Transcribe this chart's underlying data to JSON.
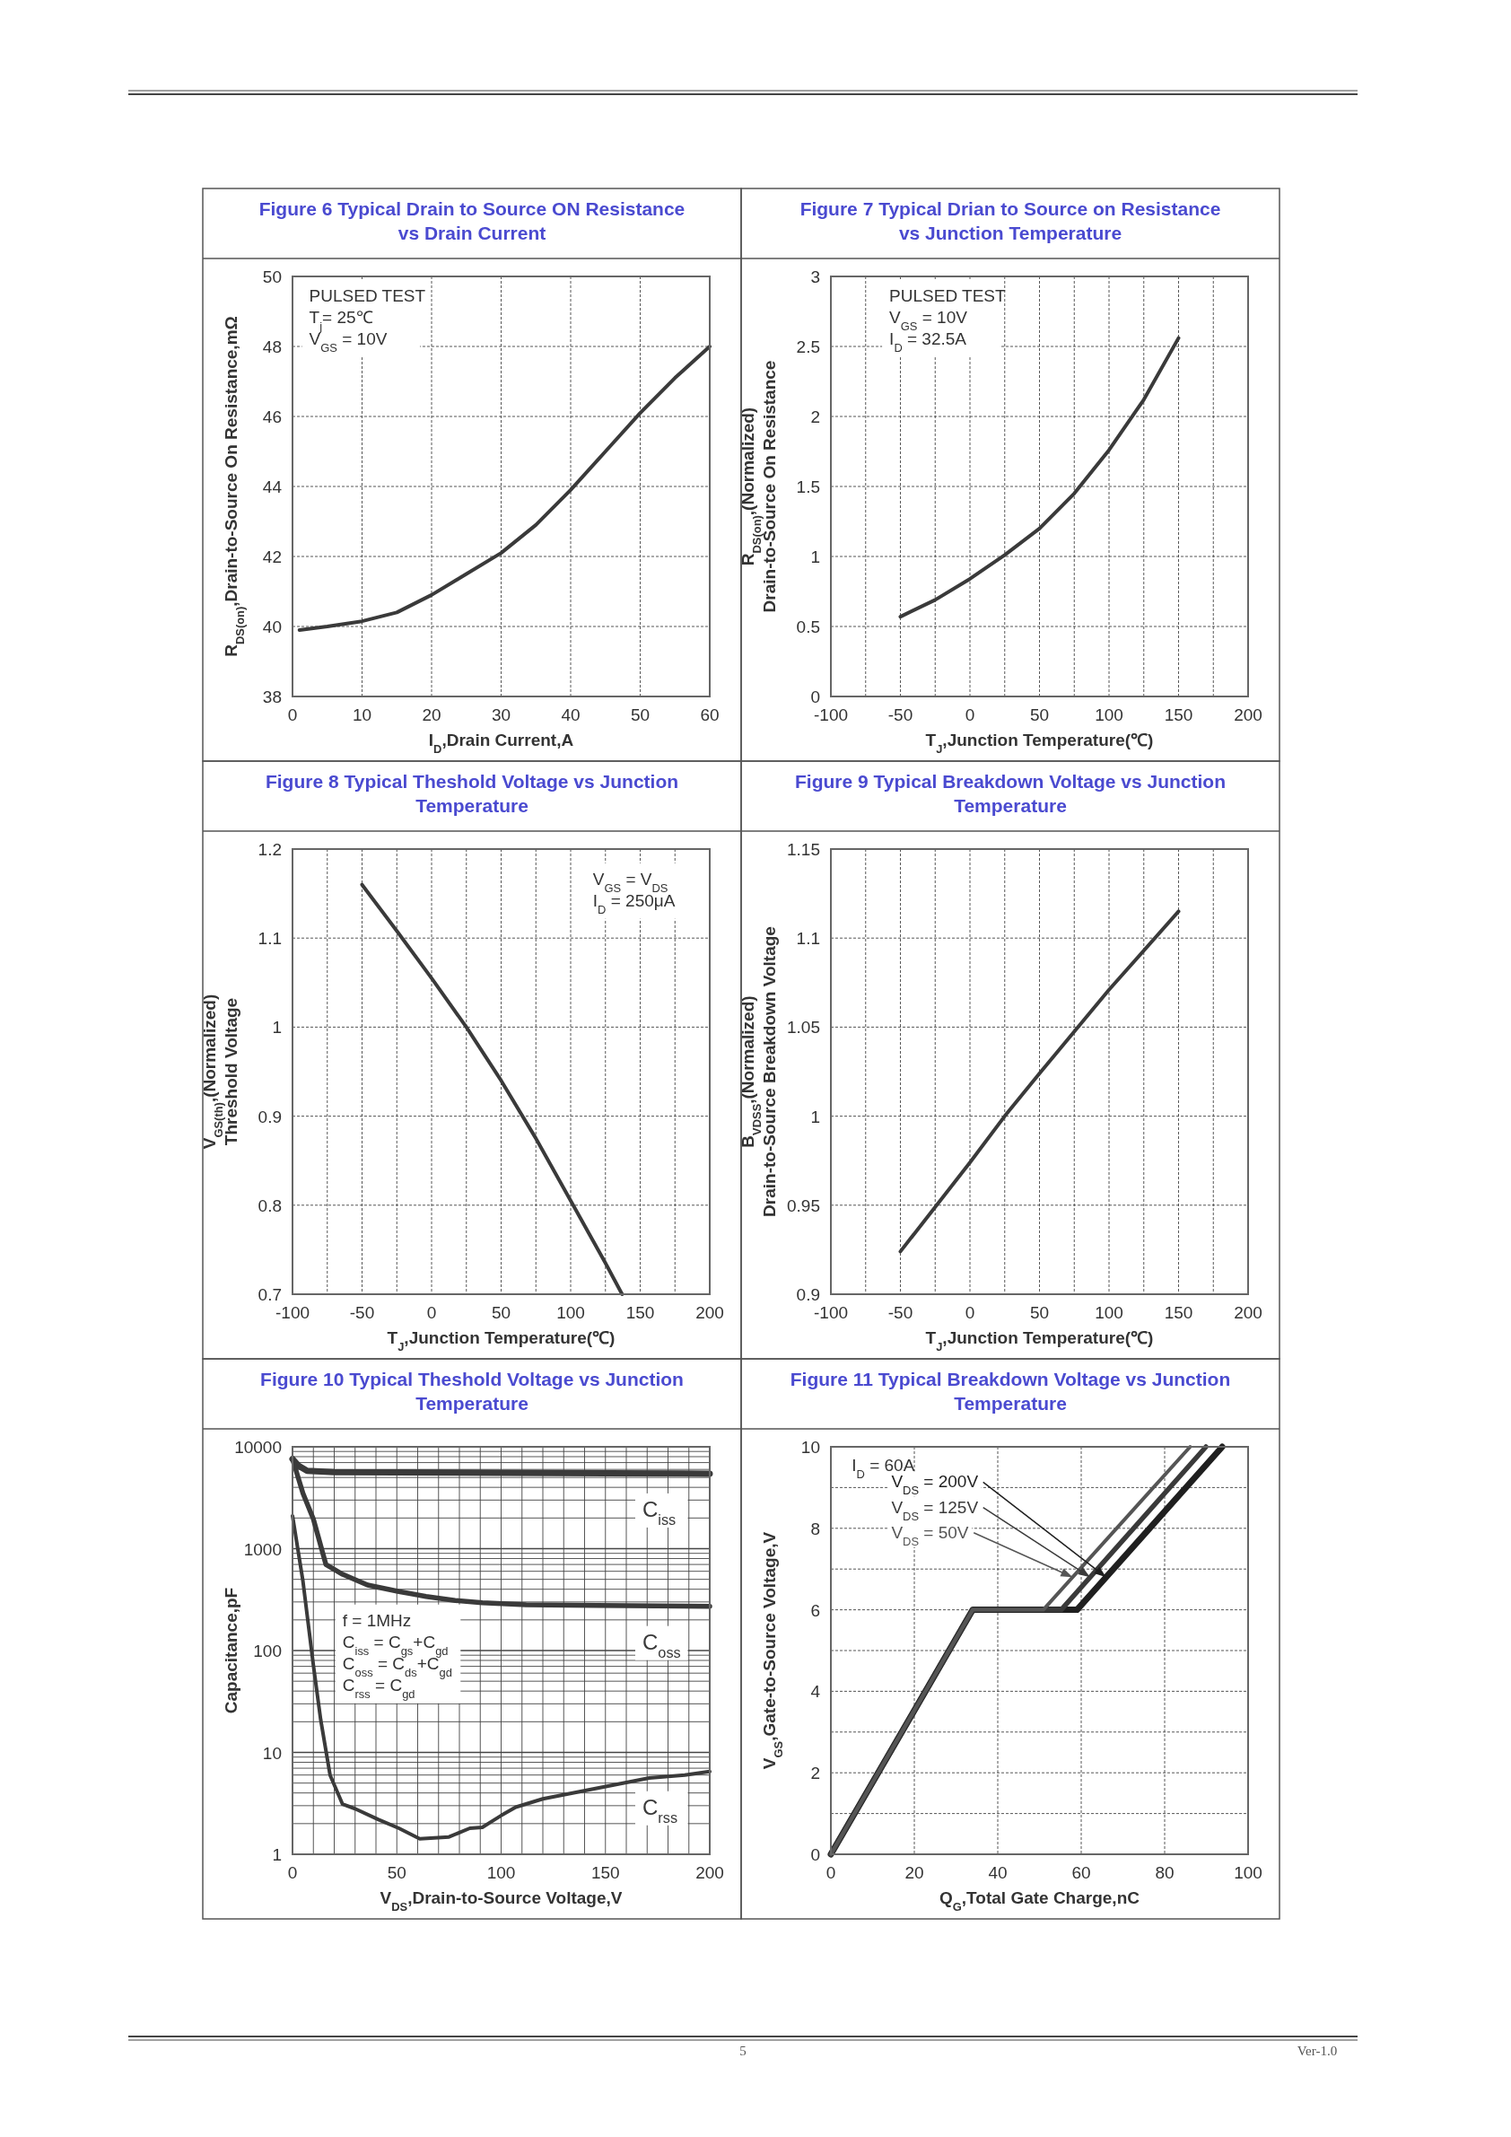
{
  "chart_data": [
    {
      "type": "line",
      "title": "Figure 6 Typical Drain to Source ON Resistance vs Drain Current",
      "xlabel": "I$_{D}$,Drain Current,A",
      "ylabel": "R$_{DS(on)}$,Drain-to-Source On Resistance,mΩ",
      "color": "#3a3a3a",
      "grid": true,
      "x": [
        1,
        5,
        10,
        15,
        20,
        25,
        30,
        35,
        40,
        45,
        50,
        55,
        60
      ],
      "values": [
        39.9,
        40.0,
        40.15,
        40.4,
        40.9,
        41.5,
        42.1,
        42.9,
        43.9,
        45.0,
        46.1,
        47.1,
        48.0
      ],
      "xlim": [
        0,
        60
      ],
      "xticks": [
        0,
        10,
        20,
        30,
        40,
        50,
        60
      ],
      "ylim": [
        38,
        50
      ],
      "yticks": [
        38,
        40,
        42,
        44,
        46,
        48,
        50
      ],
      "annotations": [
        "PULSED TEST",
        "T$_{j}$= 25℃",
        "V$_{GS}$ = 10V"
      ]
    },
    {
      "type": "line",
      "title": "Figure 7 Typical Drian to Source on Resistance vs Junction Temperature",
      "xlabel": "T$_{J}$,Junction Temperature(℃)",
      "ylabel": "R$_{DS(on)}$,(Normalized)\nDrain-to-Source On Resistance",
      "color": "#3a3a3a",
      "grid": true,
      "x": [
        -50,
        -25,
        0,
        25,
        50,
        75,
        100,
        125,
        150
      ],
      "values": [
        0.57,
        0.69,
        0.84,
        1.01,
        1.2,
        1.45,
        1.76,
        2.12,
        2.56
      ],
      "xlim": [
        -100,
        200
      ],
      "xticks": [
        -100,
        {
          "value": -75,
          "label": null
        },
        -50,
        {
          "value": -25,
          "label": null
        },
        0,
        {
          "value": 25,
          "label": null
        },
        50,
        {
          "value": 75,
          "label": null
        },
        100,
        {
          "value": 125,
          "label": null
        },
        150,
        {
          "value": 175,
          "label": null
        },
        200
      ],
      "ylim": [
        0,
        3
      ],
      "yticks": [
        0,
        0.5,
        1,
        1.5,
        2,
        2.5,
        3
      ],
      "annotations": [
        "PULSED TEST",
        "V$_{GS}$ = 10V",
        "I$_{D}$ = 32.5A"
      ]
    },
    {
      "type": "line",
      "title": "Figure 8 Typical Theshold Voltage vs Junction Temperature",
      "xlabel": "T$_{J}$,Junction Temperature(℃)",
      "ylabel": "V$_{GS(th)}$,(Normalized)\nThreshold Voltage",
      "color": "#3a3a3a",
      "grid": true,
      "x": [
        -50,
        -25,
        0,
        25,
        50,
        75,
        100,
        125,
        137
      ],
      "values": [
        1.16,
        1.108,
        1.055,
        1.0,
        0.94,
        0.875,
        0.805,
        0.735,
        0.7
      ],
      "xlim": [
        -100,
        200
      ],
      "xticks": [
        -100,
        {
          "value": -75,
          "label": null
        },
        -50,
        {
          "value": -25,
          "label": null
        },
        0,
        {
          "value": 25,
          "label": null
        },
        50,
        {
          "value": 75,
          "label": null
        },
        100,
        {
          "value": 125,
          "label": null
        },
        150,
        {
          "value": 175,
          "label": null
        },
        200
      ],
      "ylim": [
        0.7,
        1.2
      ],
      "yticks": [
        0.7,
        0.8,
        0.9,
        1,
        1.1,
        1.2
      ],
      "annotations": [
        "V$_{GS}$ = V$_{DS}$",
        "I$_{D}$ = 250μA"
      ]
    },
    {
      "type": "line",
      "title": "Figure 9 Typical Breakdown Voltage vs Junction Temperature",
      "xlabel": "T$_{J}$,Junction Temperature(℃)",
      "ylabel": "B$_{VDSS}$,(Normalized)\nDrain-to-Source Breakdown Voltage",
      "color": "#3a3a3a",
      "grid": true,
      "x": [
        -50,
        0,
        25,
        50,
        100,
        150
      ],
      "values": [
        0.924,
        0.974,
        1.0,
        1.024,
        1.071,
        1.115
      ],
      "xlim": [
        -100,
        200
      ],
      "xticks": [
        -100,
        {
          "value": -75,
          "label": null
        },
        -50,
        {
          "value": -25,
          "label": null
        },
        0,
        {
          "value": 25,
          "label": null
        },
        50,
        {
          "value": 75,
          "label": null
        },
        100,
        {
          "value": 125,
          "label": null
        },
        150,
        {
          "value": 175,
          "label": null
        },
        200
      ],
      "ylim": [
        0.9,
        1.15
      ],
      "yticks": [
        0.9,
        0.95,
        1,
        1.05,
        1.1,
        1.15
      ]
    },
    {
      "type": "line",
      "title": "Figure 10 Typical Theshold Voltage vs Junction Temperature",
      "xlabel": "V$_{DS}$,Drain-to-Source Voltage,V",
      "ylabel": "Capacitance,pF",
      "grid": true,
      "log": true,
      "series": [
        {
          "name": "C$_{iss}$",
          "color": "#3a3a3a",
          "x": [
            0,
            3,
            7,
            20,
            50,
            100,
            150,
            200
          ],
          "values": [
            7600,
            6500,
            5800,
            5650,
            5600,
            5550,
            5500,
            5450
          ]
        },
        {
          "name": "C$_{oss}$",
          "color": "#3a3a3a",
          "x": [
            0,
            5,
            10,
            16,
            24,
            36,
            51,
            64,
            78,
            91,
            112,
            146,
            200
          ],
          "values": [
            7600,
            3500,
            1950,
            700,
            560,
            440,
            380,
            340,
            310,
            295,
            282,
            277,
            272
          ]
        },
        {
          "name": "C$_{rss}$",
          "color": "#3a3a3a",
          "x": [
            0,
            5,
            10,
            13.5,
            18,
            24,
            30,
            41,
            51,
            61,
            75,
            85,
            91,
            100,
            107,
            120,
            137,
            154,
            171,
            188,
            200
          ],
          "values": [
            2100,
            480,
            72,
            21,
            6,
            3.1,
            2.8,
            2.2,
            1.8,
            1.42,
            1.48,
            1.8,
            1.84,
            2.4,
            2.9,
            3.5,
            4.1,
            4.8,
            5.6,
            6.0,
            6.5
          ]
        }
      ],
      "xlim": [
        0,
        200
      ],
      "xticks": [
        0,
        {
          "value": 10,
          "label": null
        },
        {
          "value": 20,
          "label": null
        },
        {
          "value": 30,
          "label": null
        },
        {
          "value": 40,
          "label": null
        },
        50,
        {
          "value": 60,
          "label": null
        },
        {
          "value": 70,
          "label": null
        },
        {
          "value": 80,
          "label": null
        },
        {
          "value": 90,
          "label": null
        },
        100,
        {
          "value": 110,
          "label": null
        },
        {
          "value": 120,
          "label": null
        },
        {
          "value": 130,
          "label": null
        },
        {
          "value": 140,
          "label": null
        },
        150,
        {
          "value": 160,
          "label": null
        },
        {
          "value": 170,
          "label": null
        },
        {
          "value": 180,
          "label": null
        },
        {
          "value": 190,
          "label": null
        },
        200
      ],
      "ylim": [
        1,
        10000
      ],
      "yticks": [
        1,
        {
          "value": 2,
          "label": null
        },
        {
          "value": 3,
          "label": null
        },
        {
          "value": 4,
          "label": null
        },
        {
          "value": 5,
          "label": null
        },
        {
          "value": 6,
          "label": null
        },
        {
          "value": 7,
          "label": null
        },
        {
          "value": 8,
          "label": null
        },
        {
          "value": 9,
          "label": null
        },
        10,
        {
          "value": 20,
          "label": null
        },
        {
          "value": 30,
          "label": null
        },
        {
          "value": 40,
          "label": null
        },
        {
          "value": 50,
          "label": null
        },
        {
          "value": 60,
          "label": null
        },
        {
          "value": 70,
          "label": null
        },
        {
          "value": 80,
          "label": null
        },
        {
          "value": 90,
          "label": null
        },
        100,
        {
          "value": 200,
          "label": null
        },
        {
          "value": 300,
          "label": null
        },
        {
          "value": 400,
          "label": null
        },
        {
          "value": 500,
          "label": null
        },
        {
          "value": 600,
          "label": null
        },
        {
          "value": 700,
          "label": null
        },
        {
          "value": 800,
          "label": null
        },
        {
          "value": 900,
          "label": null
        },
        1000,
        {
          "value": 2000,
          "label": null
        },
        {
          "value": 3000,
          "label": null
        },
        {
          "value": 4000,
          "label": null
        },
        {
          "value": 5000,
          "label": null
        },
        {
          "value": 6000,
          "label": null
        },
        {
          "value": 7000,
          "label": null
        },
        {
          "value": 8000,
          "label": null
        },
        {
          "value": 9000,
          "label": null
        },
        10000
      ],
      "annotations": [
        "f = 1MHz",
        "C$_{iss}$ = C$_{gs}$+C$_{gd}$",
        "C$_{oss}$ = C$_{ds}$+C$_{gd}$",
        "C$_{rss}$ = C$_{gd}$"
      ]
    },
    {
      "type": "line",
      "title": "Figure 11 Typical Breakdown Voltage vs Junction Temperature",
      "xlabel": "Q$_{G}$,Total Gate Charge,nC",
      "ylabel": "V$_{GS}$,Gate-to-Source Voltage,V",
      "grid": true,
      "series": [
        {
          "name": "V$_{DS}$ = 200V",
          "color": "#1f1f1f",
          "x": [
            0,
            34,
            59,
            93.8
          ],
          "values": [
            0,
            6,
            6,
            10
          ]
        },
        {
          "name": "V$_{DS}$ = 125V",
          "color": "#3a3a3a",
          "x": [
            0,
            34,
            55.2,
            89.9
          ],
          "values": [
            0,
            6,
            6,
            10
          ]
        },
        {
          "name": "V$_{DS}$ = 50V",
          "color": "#555555",
          "x": [
            0,
            34,
            50.9,
            86.1
          ],
          "values": [
            0,
            6,
            6,
            10
          ]
        }
      ],
      "xlim": [
        0,
        100
      ],
      "xticks": [
        0,
        20,
        40,
        60,
        80,
        100
      ],
      "ylim": [
        0,
        10
      ],
      "yticks": [
        0,
        {
          "value": 1,
          "label": null
        },
        2,
        {
          "value": 3,
          "label": null
        },
        4,
        {
          "value": 5,
          "label": null
        },
        6,
        {
          "value": 7,
          "label": null
        },
        8,
        {
          "value": 9,
          "label": null
        },
        10
      ],
      "annotations": [
        "I$_{D}$ = 60A",
        "5",
        "Ver-1.0"
      ]
    }
  ]
}
